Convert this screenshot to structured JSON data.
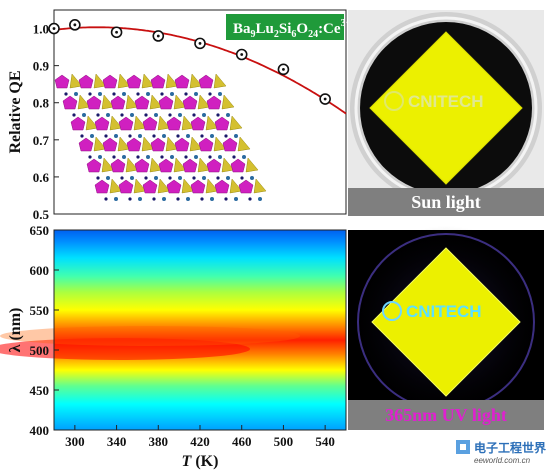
{
  "chart_data": [
    {
      "type": "scatter",
      "title": "",
      "xlabel": "",
      "ylabel": "Relative QE",
      "xlim": [
        280,
        560
      ],
      "ylim": [
        0.5,
        1.05
      ],
      "yticks": [
        "0.5",
        "0.6",
        "0.7",
        "0.8",
        "0.9",
        "1.0"
      ],
      "grid": false,
      "series": [
        {
          "x": [
            280,
            300,
            340,
            380,
            420,
            460,
            500,
            540,
            570
          ],
          "y": [
            1.0,
            1.01,
            0.99,
            0.98,
            0.96,
            0.93,
            0.89,
            0.81,
            0.74
          ],
          "marker": "open-circle",
          "fit": "poly2",
          "color": "#cc0000"
        }
      ],
      "annotations": {
        "formula": {
          "base": "Ba",
          "s1": "9",
          "b2": "Lu",
          "s2": "2",
          "b3": "Si",
          "s3": "6",
          "b4": "O",
          "s4": "24",
          "b5": ":Ce",
          "sup": "3+"
        },
        "inset": "crystal-structure-diagram"
      }
    },
    {
      "type": "heatmap",
      "title": "",
      "xlabel": "T (K)",
      "xlabel_italic": "T",
      "xlabel_unit": "(K)",
      "ylabel": "λ (nm)",
      "xlim": [
        280,
        560
      ],
      "ylim": [
        400,
        650
      ],
      "xticks": [
        "300",
        "340",
        "380",
        "420",
        "460",
        "500",
        "540"
      ],
      "yticks": [
        "400",
        "450",
        "500",
        "550",
        "600",
        "650"
      ],
      "colormap": "jet",
      "peak_wavelength": 490,
      "grid": false
    }
  ],
  "photos": {
    "top_label": "Sun light",
    "bottom_label": "365nm UV light",
    "logo_text": "CNITECH",
    "phosphor_color": "#ecf000",
    "uv_label_color": "#e020d0"
  },
  "watermark": {
    "cn": "电子工程世界",
    "url": "eeworld.com.cn"
  }
}
